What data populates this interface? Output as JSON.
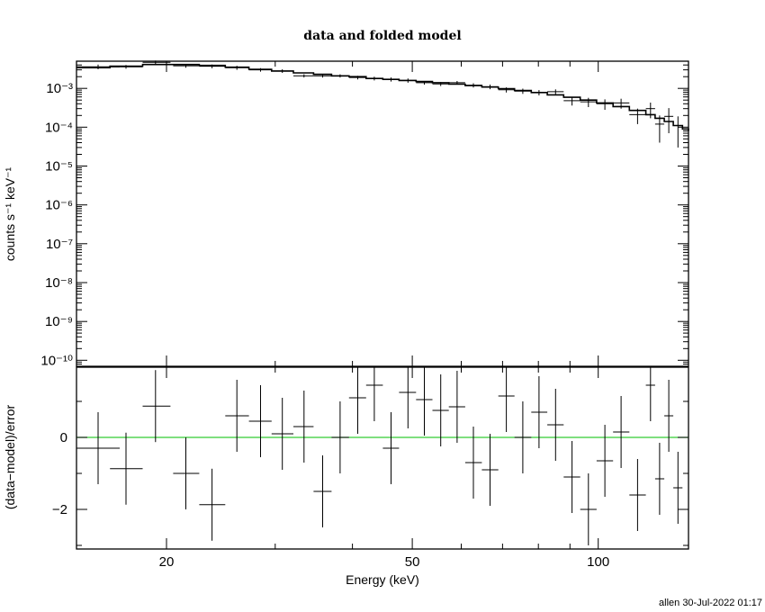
{
  "footer": "allen 30-Jul-2022 01:17",
  "chart_data": [
    {
      "type": "scatter",
      "title": "data and folded model",
      "xlabel": "",
      "ylabel": "counts s⁻¹ keV⁻¹",
      "xscale": "log",
      "yscale": "log",
      "xlim": [
        14.3,
        140
      ],
      "ylim": [
        7e-11,
        0.005
      ],
      "yticks": [
        {
          "label": "10⁻³",
          "value": 0.001
        },
        {
          "label": "10⁻⁴",
          "value": 0.0001
        },
        {
          "label": "10⁻⁵",
          "value": 1e-05
        },
        {
          "label": "10⁻⁶",
          "value": 1e-06
        },
        {
          "label": "10⁻⁷",
          "value": 1e-07
        },
        {
          "label": "10⁻⁸",
          "value": 1e-08
        },
        {
          "label": "10⁻⁹",
          "value": 1e-09
        },
        {
          "label": "10⁻¹⁰",
          "value": 1e-10
        }
      ],
      "model_color": "#000000",
      "series": [
        {
          "points": [
            {
              "x": 15.5,
              "xlo": 14.3,
              "xhi": 16.8,
              "y": 0.0036,
              "ylo": 0.0031,
              "yhi": 0.0041
            },
            {
              "x": 17.2,
              "xlo": 16.2,
              "xhi": 18.3,
              "y": 0.0036,
              "ylo": 0.0032,
              "yhi": 0.004
            },
            {
              "x": 19.2,
              "xlo": 18.3,
              "xhi": 20.3,
              "y": 0.0047,
              "ylo": 0.0042,
              "yhi": 0.0052
            },
            {
              "x": 21.5,
              "xlo": 20.5,
              "xhi": 22.6,
              "y": 0.0038,
              "ylo": 0.0034,
              "yhi": 0.0042
            },
            {
              "x": 23.7,
              "xlo": 22.6,
              "xhi": 24.9,
              "y": 0.0037,
              "ylo": 0.0033,
              "yhi": 0.0041
            },
            {
              "x": 26.0,
              "xlo": 24.9,
              "xhi": 27.2,
              "y": 0.0034,
              "ylo": 0.003,
              "yhi": 0.0038
            },
            {
              "x": 28.4,
              "xlo": 27.2,
              "xhi": 29.6,
              "y": 0.003,
              "ylo": 0.0027,
              "yhi": 0.0033
            },
            {
              "x": 30.8,
              "xlo": 29.6,
              "xhi": 32.1,
              "y": 0.0028,
              "ylo": 0.0025,
              "yhi": 0.0031
            },
            {
              "x": 33.4,
              "xlo": 32.1,
              "xhi": 34.6,
              "y": 0.0021,
              "ylo": 0.0019,
              "yhi": 0.0023
            },
            {
              "x": 35.8,
              "xlo": 34.6,
              "xhi": 37.0,
              "y": 0.0021,
              "ylo": 0.0019,
              "yhi": 0.0023
            },
            {
              "x": 38.2,
              "xlo": 37.0,
              "xhi": 39.5,
              "y": 0.0021,
              "ylo": 0.0019,
              "yhi": 0.0023
            },
            {
              "x": 40.8,
              "xlo": 39.5,
              "xhi": 42.1,
              "y": 0.0019,
              "ylo": 0.0017,
              "yhi": 0.0021
            },
            {
              "x": 43.4,
              "xlo": 42.1,
              "xhi": 44.8,
              "y": 0.0018,
              "ylo": 0.0016,
              "yhi": 0.002
            },
            {
              "x": 46.2,
              "xlo": 44.8,
              "xhi": 47.6,
              "y": 0.0017,
              "ylo": 0.0015,
              "yhi": 0.0019
            },
            {
              "x": 49.2,
              "xlo": 47.6,
              "xhi": 50.7,
              "y": 0.0016,
              "ylo": 0.0014,
              "yhi": 0.0018
            },
            {
              "x": 52.3,
              "xlo": 50.7,
              "xhi": 53.9,
              "y": 0.0014,
              "ylo": 0.00125,
              "yhi": 0.00155
            },
            {
              "x": 55.6,
              "xlo": 53.9,
              "xhi": 57.3,
              "y": 0.0013,
              "ylo": 0.00115,
              "yhi": 0.00145
            },
            {
              "x": 59.1,
              "xlo": 57.3,
              "xhi": 60.9,
              "y": 0.0014,
              "ylo": 0.00125,
              "yhi": 0.00155
            },
            {
              "x": 62.8,
              "xlo": 60.9,
              "xhi": 64.8,
              "y": 0.0012,
              "ylo": 0.00105,
              "yhi": 0.00135
            },
            {
              "x": 66.8,
              "xlo": 64.8,
              "xhi": 68.9,
              "y": 0.0011,
              "ylo": 0.00095,
              "yhi": 0.00125
            },
            {
              "x": 71.0,
              "xlo": 68.9,
              "xhi": 73.2,
              "y": 0.00092,
              "ylo": 0.00078,
              "yhi": 0.00106
            },
            {
              "x": 75.5,
              "xlo": 73.2,
              "xhi": 77.9,
              "y": 0.00085,
              "ylo": 0.00072,
              "yhi": 0.00098
            },
            {
              "x": 80.2,
              "xlo": 77.9,
              "xhi": 82.7,
              "y": 0.00078,
              "ylo": 0.00066,
              "yhi": 0.0009
            },
            {
              "x": 85.3,
              "xlo": 82.7,
              "xhi": 87.9,
              "y": 0.00082,
              "ylo": 0.0007,
              "yhi": 0.00094
            },
            {
              "x": 90.7,
              "xlo": 87.9,
              "xhi": 93.5,
              "y": 0.00048,
              "ylo": 0.00036,
              "yhi": 0.0006
            },
            {
              "x": 96.4,
              "xlo": 93.5,
              "xhi": 99.4,
              "y": 0.00045,
              "ylo": 0.00033,
              "yhi": 0.00057
            },
            {
              "x": 102.5,
              "xlo": 99.4,
              "xhi": 105.7,
              "y": 0.0004,
              "ylo": 0.00028,
              "yhi": 0.00052
            },
            {
              "x": 108.9,
              "xlo": 105.7,
              "xhi": 112.3,
              "y": 0.00042,
              "ylo": 0.0003,
              "yhi": 0.00054
            },
            {
              "x": 115.8,
              "xlo": 112.3,
              "xhi": 119.4,
              "y": 0.00021,
              "ylo": 0.00012,
              "yhi": 0.0003
            },
            {
              "x": 121.5,
              "xlo": 119.4,
              "xhi": 123.6,
              "y": 0.0003,
              "ylo": 0.00017,
              "yhi": 0.00043
            },
            {
              "x": 125.7,
              "xlo": 123.6,
              "xhi": 127.9,
              "y": 0.00012,
              "ylo": 4e-05,
              "yhi": 0.0002
            },
            {
              "x": 130.1,
              "xlo": 127.9,
              "xhi": 132.3,
              "y": 0.00019,
              "ylo": 7e-05,
              "yhi": 0.00031
            },
            {
              "x": 134.6,
              "xlo": 132.3,
              "xhi": 136.9,
              "y": 0.00011,
              "ylo": 3e-05,
              "yhi": 0.00019
            }
          ]
        },
        {
          "type": "step",
          "points": [
            {
              "x": 14.3,
              "y": 0.0034
            },
            {
              "x": 16.2,
              "y": 0.0037
            },
            {
              "x": 18.3,
              "y": 0.0041
            },
            {
              "x": 20.5,
              "y": 0.0041
            },
            {
              "x": 22.6,
              "y": 0.0039
            },
            {
              "x": 24.9,
              "y": 0.0035
            },
            {
              "x": 27.2,
              "y": 0.0031
            },
            {
              "x": 29.6,
              "y": 0.0028
            },
            {
              "x": 32.1,
              "y": 0.0025
            },
            {
              "x": 34.6,
              "y": 0.0023
            },
            {
              "x": 37.0,
              "y": 0.0021
            },
            {
              "x": 39.5,
              "y": 0.002
            },
            {
              "x": 42.1,
              "y": 0.0018
            },
            {
              "x": 44.8,
              "y": 0.0017
            },
            {
              "x": 47.6,
              "y": 0.0016
            },
            {
              "x": 50.7,
              "y": 0.0015
            },
            {
              "x": 53.9,
              "y": 0.0014
            },
            {
              "x": 57.3,
              "y": 0.00128
            },
            {
              "x": 60.9,
              "y": 0.00118
            },
            {
              "x": 64.8,
              "y": 0.00108
            },
            {
              "x": 68.9,
              "y": 0.00098
            },
            {
              "x": 73.2,
              "y": 0.00088
            },
            {
              "x": 77.9,
              "y": 0.00078
            },
            {
              "x": 82.7,
              "y": 0.00068
            },
            {
              "x": 87.9,
              "y": 0.00059
            },
            {
              "x": 93.5,
              "y": 0.0005
            },
            {
              "x": 99.4,
              "y": 0.00042
            },
            {
              "x": 105.7,
              "y": 0.00034
            },
            {
              "x": 112.3,
              "y": 0.00027
            },
            {
              "x": 119.4,
              "y": 0.00021
            },
            {
              "x": 123.6,
              "y": 0.00017
            },
            {
              "x": 127.9,
              "y": 0.00014
            },
            {
              "x": 132.3,
              "y": 0.00011
            },
            {
              "x": 136.9,
              "y": 9e-05
            },
            {
              "x": 140,
              "y": 8e-05
            }
          ]
        }
      ]
    },
    {
      "type": "scatter",
      "title": "",
      "xlabel": "Energy (keV)",
      "ylabel": "(data−model)/error",
      "xscale": "log",
      "xlim": [
        14.3,
        140
      ],
      "ylim": [
        -3.1,
        1.95
      ],
      "xticks": [
        {
          "label": "20",
          "value": 20
        },
        {
          "label": "50",
          "value": 50
        },
        {
          "label": "100",
          "value": 100
        }
      ],
      "yticks": [
        {
          "label": "0",
          "value": 0
        },
        {
          "label": "−2",
          "value": -2
        }
      ],
      "reference_line": {
        "y": 0,
        "color": "#33cc33"
      },
      "series": [
        {
          "points": [
            {
              "x": 15.5,
              "xlo": 14.3,
              "xhi": 16.8,
              "y": -0.3,
              "err": 1
            },
            {
              "x": 17.2,
              "xlo": 16.2,
              "xhi": 18.3,
              "y": -0.87,
              "err": 1
            },
            {
              "x": 19.2,
              "xlo": 18.3,
              "xhi": 20.3,
              "y": 0.87,
              "err": 1
            },
            {
              "x": 21.5,
              "xlo": 20.5,
              "xhi": 22.6,
              "y": -1.0,
              "err": 1
            },
            {
              "x": 23.7,
              "xlo": 22.6,
              "xhi": 24.9,
              "y": -1.87,
              "err": 1
            },
            {
              "x": 26.0,
              "xlo": 24.9,
              "xhi": 27.2,
              "y": 0.6,
              "err": 1
            },
            {
              "x": 28.4,
              "xlo": 27.2,
              "xhi": 29.6,
              "y": 0.45,
              "err": 1
            },
            {
              "x": 30.8,
              "xlo": 29.6,
              "xhi": 32.1,
              "y": 0.1,
              "err": 1
            },
            {
              "x": 33.4,
              "xlo": 32.1,
              "xhi": 34.6,
              "y": 0.3,
              "err": 1
            },
            {
              "x": 35.8,
              "xlo": 34.6,
              "xhi": 37.0,
              "y": -1.5,
              "err": 1
            },
            {
              "x": 38.2,
              "xlo": 37.0,
              "xhi": 39.5,
              "y": 0.0,
              "err": 1
            },
            {
              "x": 40.8,
              "xlo": 39.5,
              "xhi": 42.1,
              "y": 1.1,
              "err": 1
            },
            {
              "x": 43.4,
              "xlo": 42.1,
              "xhi": 44.8,
              "y": 1.45,
              "err": 1
            },
            {
              "x": 46.2,
              "xlo": 44.8,
              "xhi": 47.6,
              "y": -0.3,
              "err": 1
            },
            {
              "x": 49.2,
              "xlo": 47.6,
              "xhi": 50.7,
              "y": 1.25,
              "err": 1
            },
            {
              "x": 52.3,
              "xlo": 50.7,
              "xhi": 53.9,
              "y": 1.05,
              "err": 1
            },
            {
              "x": 55.6,
              "xlo": 53.9,
              "xhi": 57.3,
              "y": 0.75,
              "err": 1
            },
            {
              "x": 59.1,
              "xlo": 57.3,
              "xhi": 60.9,
              "y": 0.85,
              "err": 1
            },
            {
              "x": 62.8,
              "xlo": 60.9,
              "xhi": 64.8,
              "y": -0.7,
              "err": 1
            },
            {
              "x": 66.8,
              "xlo": 64.8,
              "xhi": 68.9,
              "y": -0.9,
              "err": 1
            },
            {
              "x": 71.0,
              "xlo": 68.9,
              "xhi": 73.2,
              "y": 1.15,
              "err": 1
            },
            {
              "x": 75.5,
              "xlo": 73.2,
              "xhi": 77.9,
              "y": 0.0,
              "err": 1
            },
            {
              "x": 80.2,
              "xlo": 77.9,
              "xhi": 82.7,
              "y": 0.7,
              "err": 1
            },
            {
              "x": 85.3,
              "xlo": 82.7,
              "xhi": 87.9,
              "y": 0.35,
              "err": 1
            },
            {
              "x": 90.7,
              "xlo": 87.9,
              "xhi": 93.5,
              "y": -1.1,
              "err": 1
            },
            {
              "x": 96.4,
              "xlo": 93.5,
              "xhi": 99.4,
              "y": -2.0,
              "err": 1
            },
            {
              "x": 102.5,
              "xlo": 99.4,
              "xhi": 105.7,
              "y": -0.65,
              "err": 1
            },
            {
              "x": 108.9,
              "xlo": 105.7,
              "xhi": 112.3,
              "y": 0.15,
              "err": 1
            },
            {
              "x": 115.8,
              "xlo": 112.3,
              "xhi": 119.4,
              "y": -1.6,
              "err": 1
            },
            {
              "x": 121.5,
              "xlo": 119.4,
              "xhi": 123.6,
              "y": 1.45,
              "err": 1
            },
            {
              "x": 125.7,
              "xlo": 123.6,
              "xhi": 127.9,
              "y": -1.15,
              "err": 1
            },
            {
              "x": 130.1,
              "xlo": 127.9,
              "xhi": 132.3,
              "y": 0.6,
              "err": 1
            },
            {
              "x": 134.6,
              "xlo": 132.3,
              "xhi": 136.9,
              "y": -1.4,
              "err": 1
            }
          ]
        }
      ]
    }
  ]
}
